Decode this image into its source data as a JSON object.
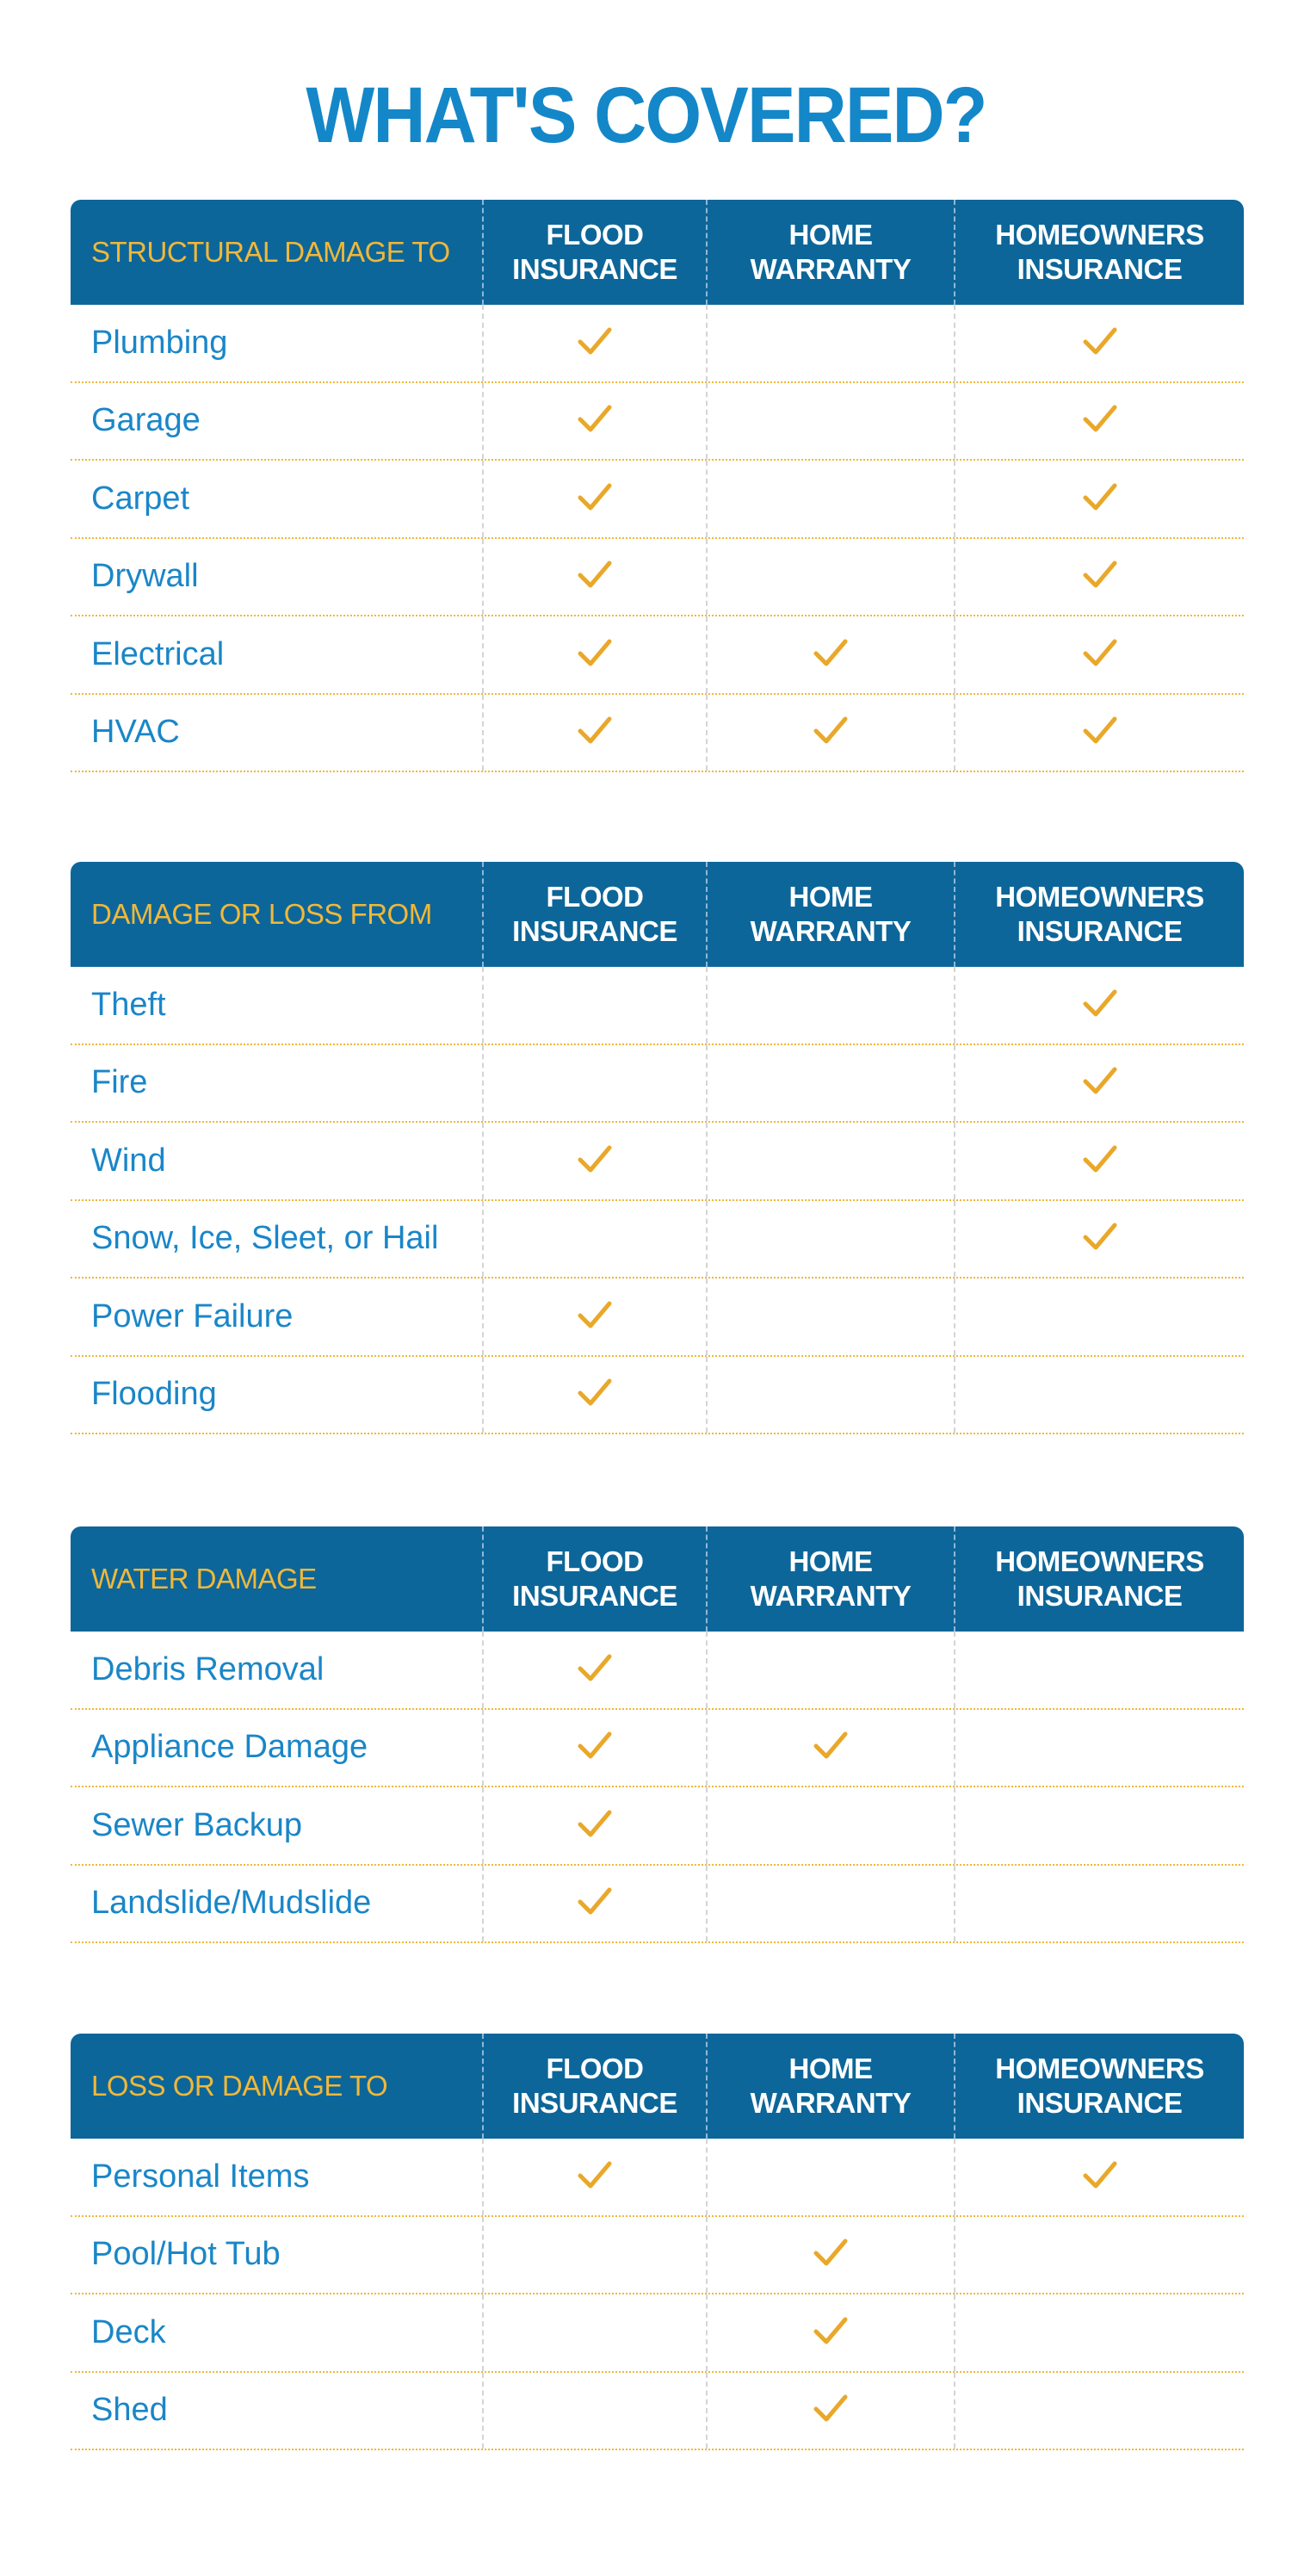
{
  "title": "WHAT'S COVERED?",
  "colors": {
    "title": "#1487c9",
    "header_bg": "#0d6699",
    "category": "#f0b83a",
    "check": "#e9a82a",
    "row_text": "#1a86c8"
  },
  "columns": [
    "FLOOD INSURANCE",
    "HOME WARRANTY",
    "HOMEOWNERS INSURANCE"
  ],
  "check_icon": "checkmark-icon",
  "tables": [
    {
      "category": "STRUCTURAL DAMAGE TO",
      "rows": [
        {
          "label": "Plumbing",
          "covered": [
            true,
            false,
            true
          ]
        },
        {
          "label": "Garage",
          "covered": [
            true,
            false,
            true
          ]
        },
        {
          "label": "Carpet",
          "covered": [
            true,
            false,
            true
          ]
        },
        {
          "label": "Drywall",
          "covered": [
            true,
            false,
            true
          ]
        },
        {
          "label": "Electrical",
          "covered": [
            true,
            true,
            true
          ]
        },
        {
          "label": "HVAC",
          "covered": [
            true,
            true,
            true
          ]
        }
      ]
    },
    {
      "category": "DAMAGE OR LOSS FROM",
      "rows": [
        {
          "label": "Theft",
          "covered": [
            false,
            false,
            true
          ]
        },
        {
          "label": "Fire",
          "covered": [
            false,
            false,
            true
          ]
        },
        {
          "label": "Wind",
          "covered": [
            true,
            false,
            true
          ]
        },
        {
          "label": "Snow, Ice, Sleet, or Hail",
          "covered": [
            false,
            false,
            true
          ]
        },
        {
          "label": "Power Failure",
          "covered": [
            true,
            false,
            false
          ]
        },
        {
          "label": "Flooding",
          "covered": [
            true,
            false,
            false
          ]
        }
      ]
    },
    {
      "category": "WATER DAMAGE",
      "rows": [
        {
          "label": "Debris Removal",
          "covered": [
            true,
            false,
            false
          ]
        },
        {
          "label": "Appliance Damage",
          "covered": [
            true,
            true,
            false
          ]
        },
        {
          "label": "Sewer Backup",
          "covered": [
            true,
            false,
            false
          ]
        },
        {
          "label": "Landslide/Mudslide",
          "covered": [
            true,
            false,
            false
          ]
        }
      ]
    },
    {
      "category": "LOSS OR DAMAGE TO",
      "rows": [
        {
          "label": "Personal Items",
          "covered": [
            true,
            false,
            true
          ]
        },
        {
          "label": "Pool/Hot Tub",
          "covered": [
            false,
            true,
            false
          ]
        },
        {
          "label": "Deck",
          "covered": [
            false,
            true,
            false
          ]
        },
        {
          "label": "Shed",
          "covered": [
            false,
            true,
            false
          ]
        }
      ]
    }
  ]
}
